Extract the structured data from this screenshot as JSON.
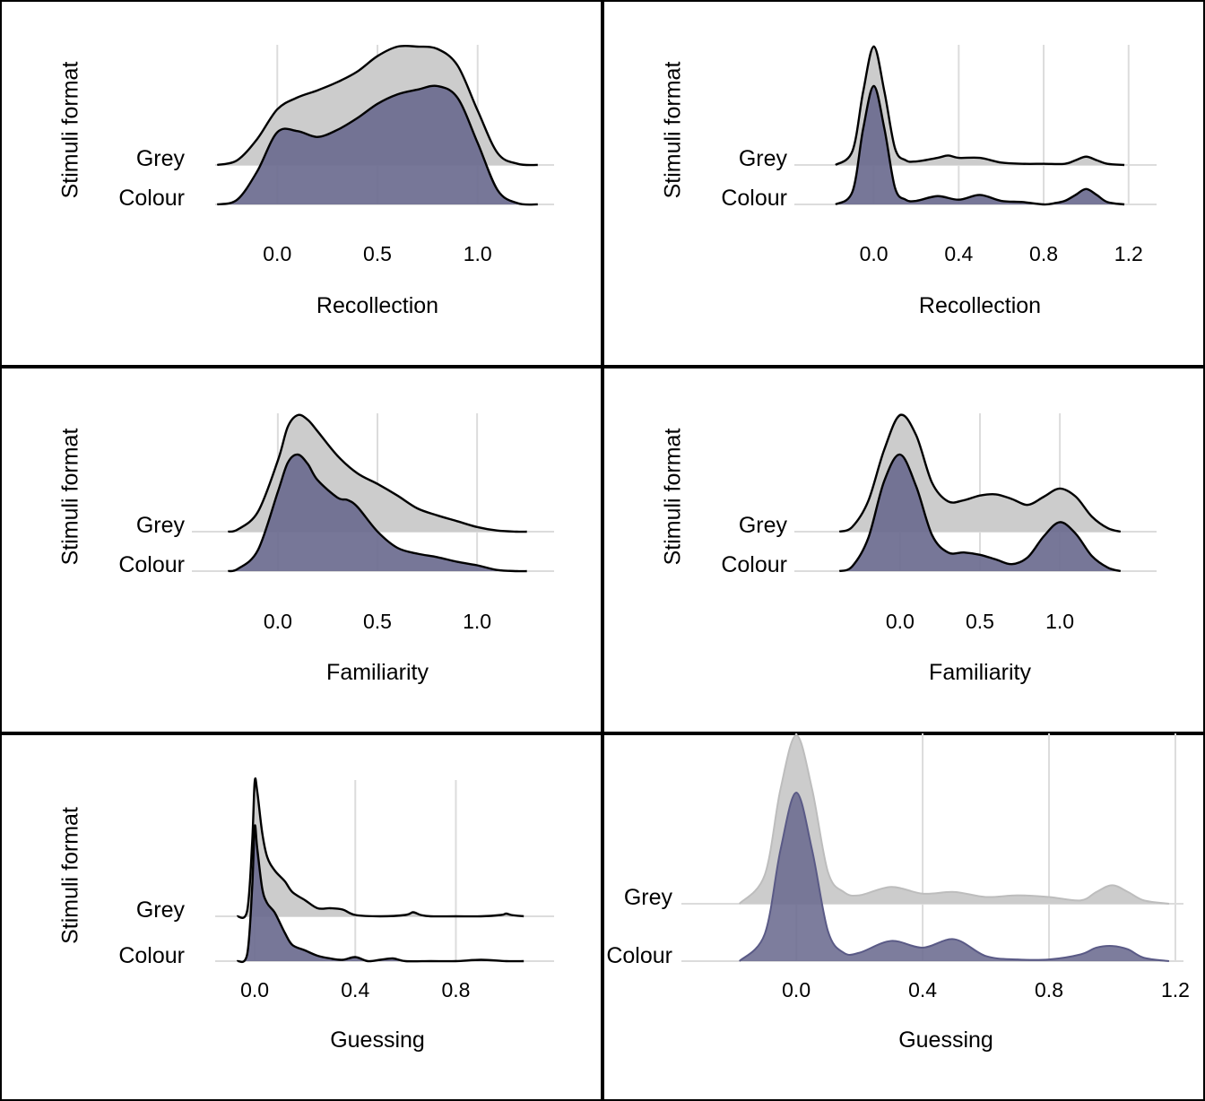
{
  "colors": {
    "grey_fill": "#cccccc",
    "colour_fill": "#6b6b8f",
    "grid": "#dcdcdc",
    "outline": "#000000",
    "panel_border": "#000000"
  },
  "chart_data": [
    {
      "type": "ridgeline",
      "xlabel": "Recollection",
      "ylabel": "Stimuli format",
      "categories": [
        "Grey",
        "Colour"
      ],
      "xticks": [
        "0.0",
        "0.5",
        "1.0"
      ],
      "xlim": [
        -0.31,
        1.31
      ],
      "outlined": true,
      "series": [
        {
          "name": "Grey",
          "x": [
            -0.3,
            -0.2,
            -0.1,
            0.0,
            0.1,
            0.2,
            0.3,
            0.4,
            0.5,
            0.6,
            0.7,
            0.8,
            0.9,
            1.0,
            1.1,
            1.2,
            1.3
          ],
          "density": [
            0.0,
            0.04,
            0.22,
            0.47,
            0.57,
            0.63,
            0.7,
            0.79,
            0.92,
            1.0,
            1.0,
            0.98,
            0.84,
            0.46,
            0.1,
            0.01,
            0.0
          ]
        },
        {
          "name": "Colour",
          "x": [
            -0.3,
            -0.2,
            -0.1,
            0.0,
            0.1,
            0.2,
            0.3,
            0.4,
            0.5,
            0.6,
            0.7,
            0.8,
            0.9,
            1.0,
            1.1,
            1.2,
            1.3
          ],
          "density": [
            0.0,
            0.04,
            0.28,
            0.61,
            0.62,
            0.57,
            0.63,
            0.73,
            0.85,
            0.93,
            0.97,
            1.0,
            0.9,
            0.52,
            0.12,
            0.01,
            0.0
          ]
        }
      ]
    },
    {
      "type": "ridgeline",
      "xlabel": "Recollection",
      "ylabel": "Stimuli format",
      "categories": [
        "Grey",
        "Colour"
      ],
      "xticks": [
        "0.0",
        "0.4",
        "0.8",
        "1.2"
      ],
      "xlim": [
        -0.26,
        1.26
      ],
      "outlined": true,
      "series": [
        {
          "name": "Grey",
          "x": [
            -0.18,
            -0.1,
            -0.05,
            0.0,
            0.05,
            0.1,
            0.15,
            0.2,
            0.3,
            0.35,
            0.4,
            0.5,
            0.6,
            0.7,
            0.8,
            0.9,
            0.95,
            1.0,
            1.05,
            1.1,
            1.18
          ],
          "density": [
            0.0,
            0.12,
            0.62,
            1.0,
            0.62,
            0.14,
            0.04,
            0.03,
            0.06,
            0.08,
            0.06,
            0.06,
            0.02,
            0.01,
            0.01,
            0.01,
            0.04,
            0.07,
            0.04,
            0.01,
            0.0
          ]
        },
        {
          "name": "Colour",
          "x": [
            -0.18,
            -0.1,
            -0.05,
            0.0,
            0.05,
            0.1,
            0.15,
            0.2,
            0.3,
            0.4,
            0.5,
            0.6,
            0.7,
            0.8,
            0.85,
            0.9,
            0.95,
            1.0,
            1.05,
            1.1,
            1.18
          ],
          "density": [
            0.0,
            0.11,
            0.64,
            1.0,
            0.64,
            0.14,
            0.04,
            0.03,
            0.07,
            0.04,
            0.08,
            0.03,
            0.02,
            0.0,
            0.01,
            0.03,
            0.08,
            0.13,
            0.08,
            0.02,
            0.0
          ]
        }
      ]
    },
    {
      "type": "ridgeline",
      "xlabel": "Familiarity",
      "ylabel": "Stimuli format",
      "categories": [
        "Grey",
        "Colour"
      ],
      "xticks": [
        "0.0",
        "0.5",
        "1.0"
      ],
      "xlim": [
        -0.31,
        1.31
      ],
      "outlined": true,
      "series": [
        {
          "name": "Grey",
          "x": [
            -0.25,
            -0.2,
            -0.1,
            0.0,
            0.05,
            0.1,
            0.15,
            0.2,
            0.3,
            0.4,
            0.5,
            0.6,
            0.7,
            0.8,
            0.9,
            1.0,
            1.1,
            1.2,
            1.25
          ],
          "density": [
            0.0,
            0.02,
            0.17,
            0.61,
            0.9,
            1.0,
            0.96,
            0.86,
            0.65,
            0.5,
            0.41,
            0.31,
            0.2,
            0.14,
            0.09,
            0.04,
            0.01,
            0.0,
            0.0
          ]
        },
        {
          "name": "Colour",
          "x": [
            -0.25,
            -0.2,
            -0.1,
            0.0,
            0.05,
            0.1,
            0.15,
            0.2,
            0.3,
            0.35,
            0.4,
            0.5,
            0.6,
            0.7,
            0.8,
            0.9,
            1.0,
            1.1,
            1.2,
            1.25
          ],
          "density": [
            0.0,
            0.02,
            0.18,
            0.68,
            0.93,
            1.0,
            0.92,
            0.78,
            0.63,
            0.61,
            0.55,
            0.34,
            0.2,
            0.15,
            0.12,
            0.08,
            0.05,
            0.01,
            0.0,
            0.0
          ]
        }
      ]
    },
    {
      "type": "ridgeline",
      "xlabel": "Familiarity",
      "ylabel": "Stimuli format",
      "categories": [
        "Grey",
        "Colour"
      ],
      "xticks": [
        "0.0",
        "0.5",
        "1.0"
      ],
      "xlim": [
        -0.51,
        1.51
      ],
      "outlined": true,
      "series": [
        {
          "name": "Grey",
          "x": [
            -0.38,
            -0.3,
            -0.2,
            -0.1,
            0.0,
            0.1,
            0.2,
            0.3,
            0.4,
            0.5,
            0.6,
            0.7,
            0.8,
            0.9,
            1.0,
            1.1,
            1.2,
            1.3,
            1.38
          ],
          "density": [
            0.0,
            0.04,
            0.26,
            0.7,
            1.0,
            0.83,
            0.42,
            0.26,
            0.27,
            0.31,
            0.32,
            0.28,
            0.23,
            0.3,
            0.37,
            0.3,
            0.13,
            0.03,
            0.0
          ]
        },
        {
          "name": "Colour",
          "x": [
            -0.38,
            -0.3,
            -0.2,
            -0.1,
            0.0,
            0.1,
            0.2,
            0.3,
            0.4,
            0.5,
            0.6,
            0.7,
            0.8,
            0.9,
            1.0,
            1.1,
            1.2,
            1.3,
            1.38
          ],
          "density": [
            0.0,
            0.04,
            0.28,
            0.77,
            1.0,
            0.73,
            0.31,
            0.16,
            0.16,
            0.14,
            0.1,
            0.06,
            0.12,
            0.3,
            0.42,
            0.32,
            0.13,
            0.03,
            0.0
          ]
        }
      ]
    },
    {
      "type": "ridgeline",
      "xlabel": "Guessing",
      "ylabel": "Stimuli format",
      "categories": [
        "Grey",
        "Colour"
      ],
      "xticks": [
        "0.0",
        "0.4",
        "0.8"
      ],
      "xlim": [
        -0.15,
        1.13
      ],
      "outlined": true,
      "series": [
        {
          "name": "Grey",
          "x": [
            -0.07,
            -0.03,
            -0.01,
            0.0,
            0.01,
            0.03,
            0.05,
            0.08,
            0.12,
            0.15,
            0.2,
            0.25,
            0.3,
            0.35,
            0.4,
            0.5,
            0.6,
            0.63,
            0.66,
            0.7,
            0.8,
            0.9,
            0.98,
            1.0,
            1.02,
            1.07
          ],
          "density": [
            0.0,
            0.04,
            0.55,
            1.0,
            0.93,
            0.62,
            0.44,
            0.34,
            0.26,
            0.18,
            0.12,
            0.06,
            0.06,
            0.05,
            0.01,
            0.0,
            0.01,
            0.03,
            0.01,
            0.0,
            0.0,
            0.0,
            0.01,
            0.02,
            0.01,
            0.0
          ]
        },
        {
          "name": "Colour",
          "x": [
            -0.07,
            -0.03,
            -0.01,
            0.0,
            0.01,
            0.03,
            0.05,
            0.08,
            0.12,
            0.15,
            0.2,
            0.25,
            0.3,
            0.35,
            0.4,
            0.45,
            0.5,
            0.55,
            0.6,
            0.7,
            0.8,
            0.9,
            1.0,
            1.07
          ],
          "density": [
            0.0,
            0.05,
            0.55,
            1.0,
            0.84,
            0.54,
            0.43,
            0.36,
            0.21,
            0.12,
            0.08,
            0.04,
            0.02,
            0.01,
            0.03,
            0.0,
            0.01,
            0.02,
            0.0,
            0.0,
            0.0,
            0.01,
            0.0,
            0.0
          ]
        }
      ]
    },
    {
      "type": "ridgeline",
      "xlabel": "Guessing",
      "categories": [
        "Grey",
        "Colour"
      ],
      "xticks": [
        "0.0",
        "0.4",
        "0.8",
        "1.2"
      ],
      "xlim": [
        -0.27,
        1.22
      ],
      "outlined": false,
      "series": [
        {
          "name": "Grey",
          "x": [
            -0.18,
            -0.1,
            -0.05,
            0.0,
            0.05,
            0.1,
            0.15,
            0.2,
            0.3,
            0.4,
            0.5,
            0.6,
            0.7,
            0.8,
            0.9,
            0.95,
            1.0,
            1.05,
            1.1,
            1.18
          ],
          "density": [
            0.0,
            0.17,
            0.68,
            1.0,
            0.68,
            0.19,
            0.07,
            0.05,
            0.1,
            0.06,
            0.07,
            0.04,
            0.05,
            0.04,
            0.02,
            0.07,
            0.11,
            0.07,
            0.02,
            0.0
          ]
        },
        {
          "name": "Colour",
          "x": [
            -0.18,
            -0.1,
            -0.05,
            0.0,
            0.05,
            0.1,
            0.15,
            0.2,
            0.3,
            0.4,
            0.5,
            0.6,
            0.7,
            0.8,
            0.9,
            0.95,
            1.0,
            1.05,
            1.1,
            1.18
          ],
          "density": [
            0.0,
            0.16,
            0.66,
            1.0,
            0.66,
            0.18,
            0.05,
            0.05,
            0.12,
            0.08,
            0.13,
            0.03,
            0.01,
            0.01,
            0.04,
            0.08,
            0.09,
            0.07,
            0.02,
            0.0
          ]
        }
      ]
    }
  ]
}
